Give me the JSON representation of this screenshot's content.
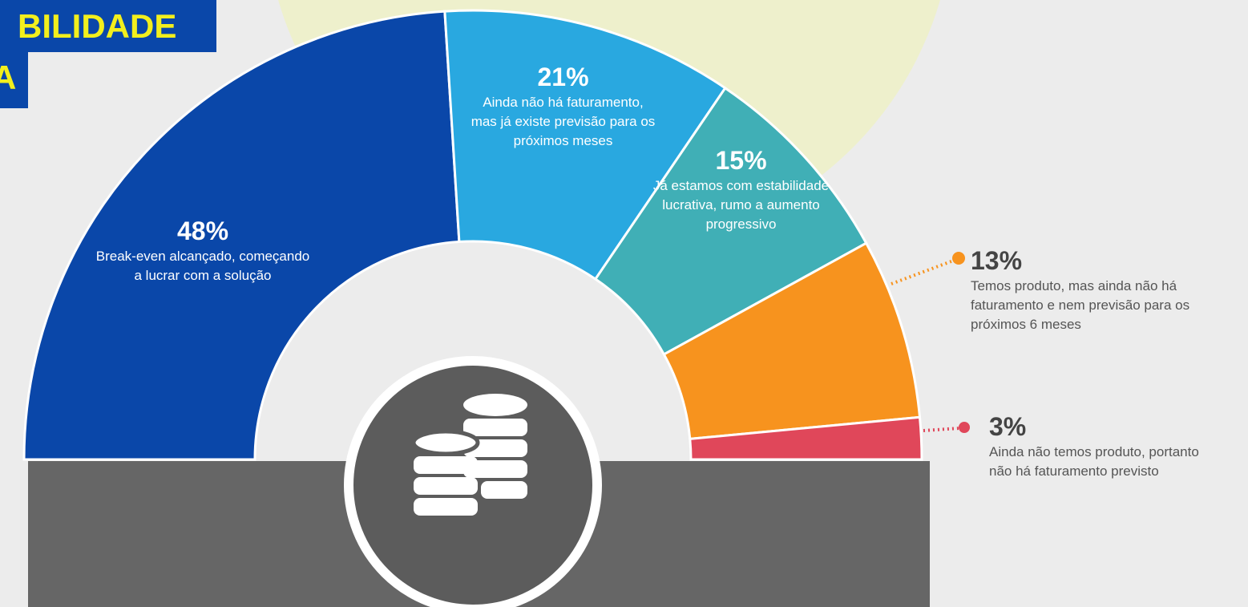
{
  "header": {
    "title_lines": [
      "BILIDADE",
      "A"
    ]
  },
  "chart_data": {
    "type": "pie",
    "categories": [
      "Break-even alcançado, começando a lucrar com a solução",
      "Ainda não há faturamento, mas já existe previsão para os próximos meses",
      "Já estamos com estabilidade lucrativa, rumo a aumento progressivo",
      "Temos produto, mas ainda não há faturamento e nem previsão para os próximos 6 meses",
      "Ainda não temos produto, portanto não há faturamento previsto"
    ],
    "values": [
      48,
      21,
      15,
      13,
      3
    ],
    "value_labels": [
      "48%",
      "21%",
      "15%",
      "13%",
      "3%"
    ],
    "colors": [
      "#0a47a9",
      "#29a8e0",
      "#40afb6",
      "#f7931e",
      "#e0475a"
    ]
  }
}
